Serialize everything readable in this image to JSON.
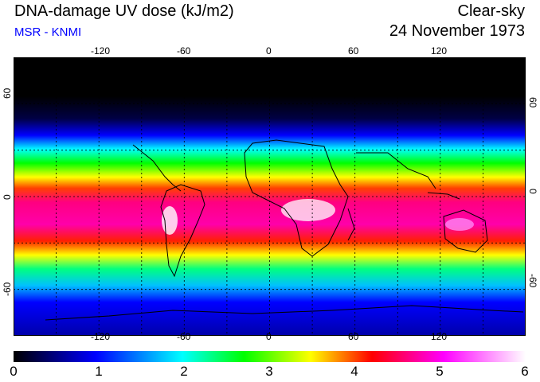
{
  "header": {
    "title": "DNA-damage UV dose (kJ/m2)",
    "source": "MSR - KNMI",
    "sky": "Clear-sky",
    "date": "24 November 1973"
  },
  "map": {
    "lon_ticks": [
      "-120",
      "-60",
      "0",
      "60",
      "120"
    ],
    "lat_ticks": [
      "60",
      "0",
      "-60"
    ],
    "lon_range": [
      -180,
      180
    ],
    "lat_range": [
      -90,
      90
    ],
    "grid": "dotted lines every 30 degrees"
  },
  "colorbar": {
    "labels": [
      "0",
      "1",
      "2",
      "3",
      "4",
      "5",
      "6"
    ],
    "range": [
      0,
      6
    ],
    "colors": [
      "#000000",
      "#0000ff",
      "#00ffff",
      "#00ff00",
      "#ffff00",
      "#ff0000",
      "#ff00ff",
      "#ffffff"
    ]
  }
}
